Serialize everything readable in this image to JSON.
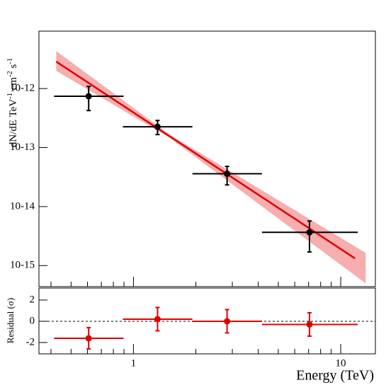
{
  "chart_data": [
    {
      "type": "scatter",
      "xlog": true,
      "ylog": true,
      "ylabel": "dN/dE TeV-1 cm-2 s-1",
      "xlim": [
        0.35,
        14.7
      ],
      "ylim": [
        4.4e-16,
        9.4e-12
      ],
      "xticks": [
        1,
        10
      ],
      "xminorticks": [
        0.4,
        0.5,
        0.6,
        0.7,
        0.8,
        0.9,
        2,
        3,
        4,
        5,
        6,
        7,
        8,
        9
      ],
      "yticks": [
        {
          "value": 1e-15,
          "label": "10-15"
        },
        {
          "value": 1e-14,
          "label": "10-14"
        },
        {
          "value": 1e-13,
          "label": "10-13"
        },
        {
          "value": 1e-12,
          "label": "10-12"
        }
      ],
      "band": {
        "color": "#f4a0a0",
        "x": [
          0.424,
          1.5,
          13.2
        ],
        "lower": [
          2e-12,
          1.45e-13,
          5e-16
        ],
        "upper": [
          4.33e-12,
          1.65e-13,
          1.64e-15
        ]
      },
      "fit": {
        "color": "#e00000",
        "x": [
          0.424,
          1.5,
          11.73
        ],
        "values": [
          2.86e-12,
          1.54e-13,
          1.32e-15
        ]
      },
      "series": [
        {
          "color": "#000000",
          "x": [
            0.608,
            1.307,
            2.83,
            7.07
          ],
          "values": [
            7.4e-13,
            2.25e-13,
            3.6e-14,
            3.66e-15
          ],
          "x_low": [
            0.414,
            0.889,
            1.925,
            4.17
          ],
          "x_high": [
            0.896,
            1.925,
            4.17,
            12.09
          ],
          "y_low": [
            4.24e-13,
            1.66e-13,
            2.33e-14,
            1.7e-15
          ],
          "y_high": [
            1.086e-12,
            2.88e-13,
            4.8e-14,
            5.69e-15
          ]
        }
      ]
    },
    {
      "type": "scatter",
      "xlog": true,
      "ylabel": "Residual (σ)",
      "xlabel": "Energy (TeV)",
      "xlim": [
        0.35,
        14.7
      ],
      "ylim": [
        -3.07,
        3.13
      ],
      "xticks": [
        1,
        10
      ],
      "xminorticks": [
        0.4,
        0.5,
        0.6,
        0.7,
        0.8,
        0.9,
        2,
        3,
        4,
        5,
        6,
        7,
        8,
        9
      ],
      "yticks": [
        -2,
        0,
        2
      ],
      "hline": 0,
      "series": [
        {
          "color": "#e00000",
          "x": [
            0.608,
            1.307,
            2.83,
            7.07
          ],
          "values": [
            -1.6,
            0.2,
            0.0,
            -0.3
          ],
          "x_low": [
            0.414,
            0.889,
            1.925,
            4.17
          ],
          "x_high": [
            0.896,
            1.925,
            4.17,
            12.09
          ],
          "yerr": [
            1.0,
            1.1,
            1.1,
            1.1
          ]
        }
      ]
    }
  ]
}
